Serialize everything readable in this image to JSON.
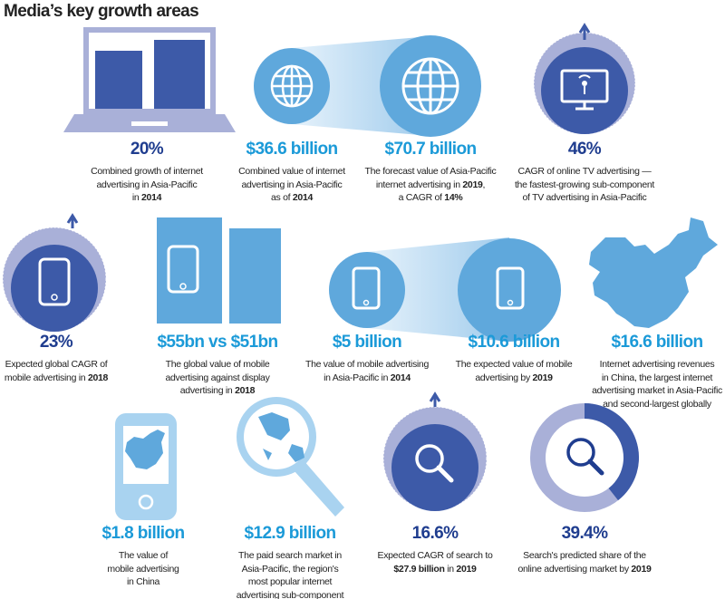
{
  "title": "Media’s key growth areas",
  "colors": {
    "dark": "#3d5aa8",
    "light": "#5fa8dc",
    "lavender": "#a9b0d8",
    "pale": "#cfe6f6"
  },
  "stats": [
    {
      "value": "20%",
      "desc": [
        "Combined growth of internet",
        "advertising in Asia-Pacific",
        "in ",
        "2014"
      ]
    },
    {
      "value": "$36.6 billion",
      "desc": [
        "Combined value of internet",
        "advertising in Asia-Pacific",
        "as of ",
        "2014"
      ]
    },
    {
      "value": "$70.7 billion",
      "desc": [
        "The forecast value of Asia-Pacific",
        "internet advertising in ",
        "2019",
        ",",
        "a CAGR of ",
        "14%"
      ]
    },
    {
      "value": "46%",
      "desc": [
        "CAGR of online TV advertising —",
        "the fastest-growing sub-component",
        "of TV advertising in Asia-Pacific"
      ]
    },
    {
      "value": "23%",
      "desc": [
        "Expected global CAGR of",
        "mobile advertising in ",
        "2018"
      ]
    },
    {
      "value": "$55bn vs $51bn",
      "desc": [
        "The global value of mobile",
        "advertising against display",
        "advertising in ",
        "2018"
      ]
    },
    {
      "value": "$5 billion",
      "desc": [
        "The value of mobile advertising",
        "in Asia-Pacific in ",
        "2014"
      ]
    },
    {
      "value": "$10.6 billion",
      "desc": [
        "The expected value of mobile",
        "advertising by ",
        "2019"
      ]
    },
    {
      "value": "$16.6 billion",
      "desc": [
        "Internet advertising revenues",
        "in China, the largest internet",
        "advertising market in Asia-Pacific",
        "and second-largest globally"
      ]
    },
    {
      "value": "$1.8 billion",
      "desc": [
        "The value of",
        "mobile advertising",
        "in China"
      ]
    },
    {
      "value": "$12.9 billion",
      "desc": [
        "The paid search market in",
        "Asia-Pacific, the region's",
        "most popular internet",
        "advertising sub-component"
      ]
    },
    {
      "value": "16.6%",
      "desc": [
        "Expected CAGR of search to",
        "$27.9 billion",
        " in ",
        "2019"
      ]
    },
    {
      "value": "39.4%",
      "desc": [
        "Search's predicted share of the",
        "online advertising market by ",
        "2019"
      ]
    }
  ],
  "donut_share_percent": 39.4
}
